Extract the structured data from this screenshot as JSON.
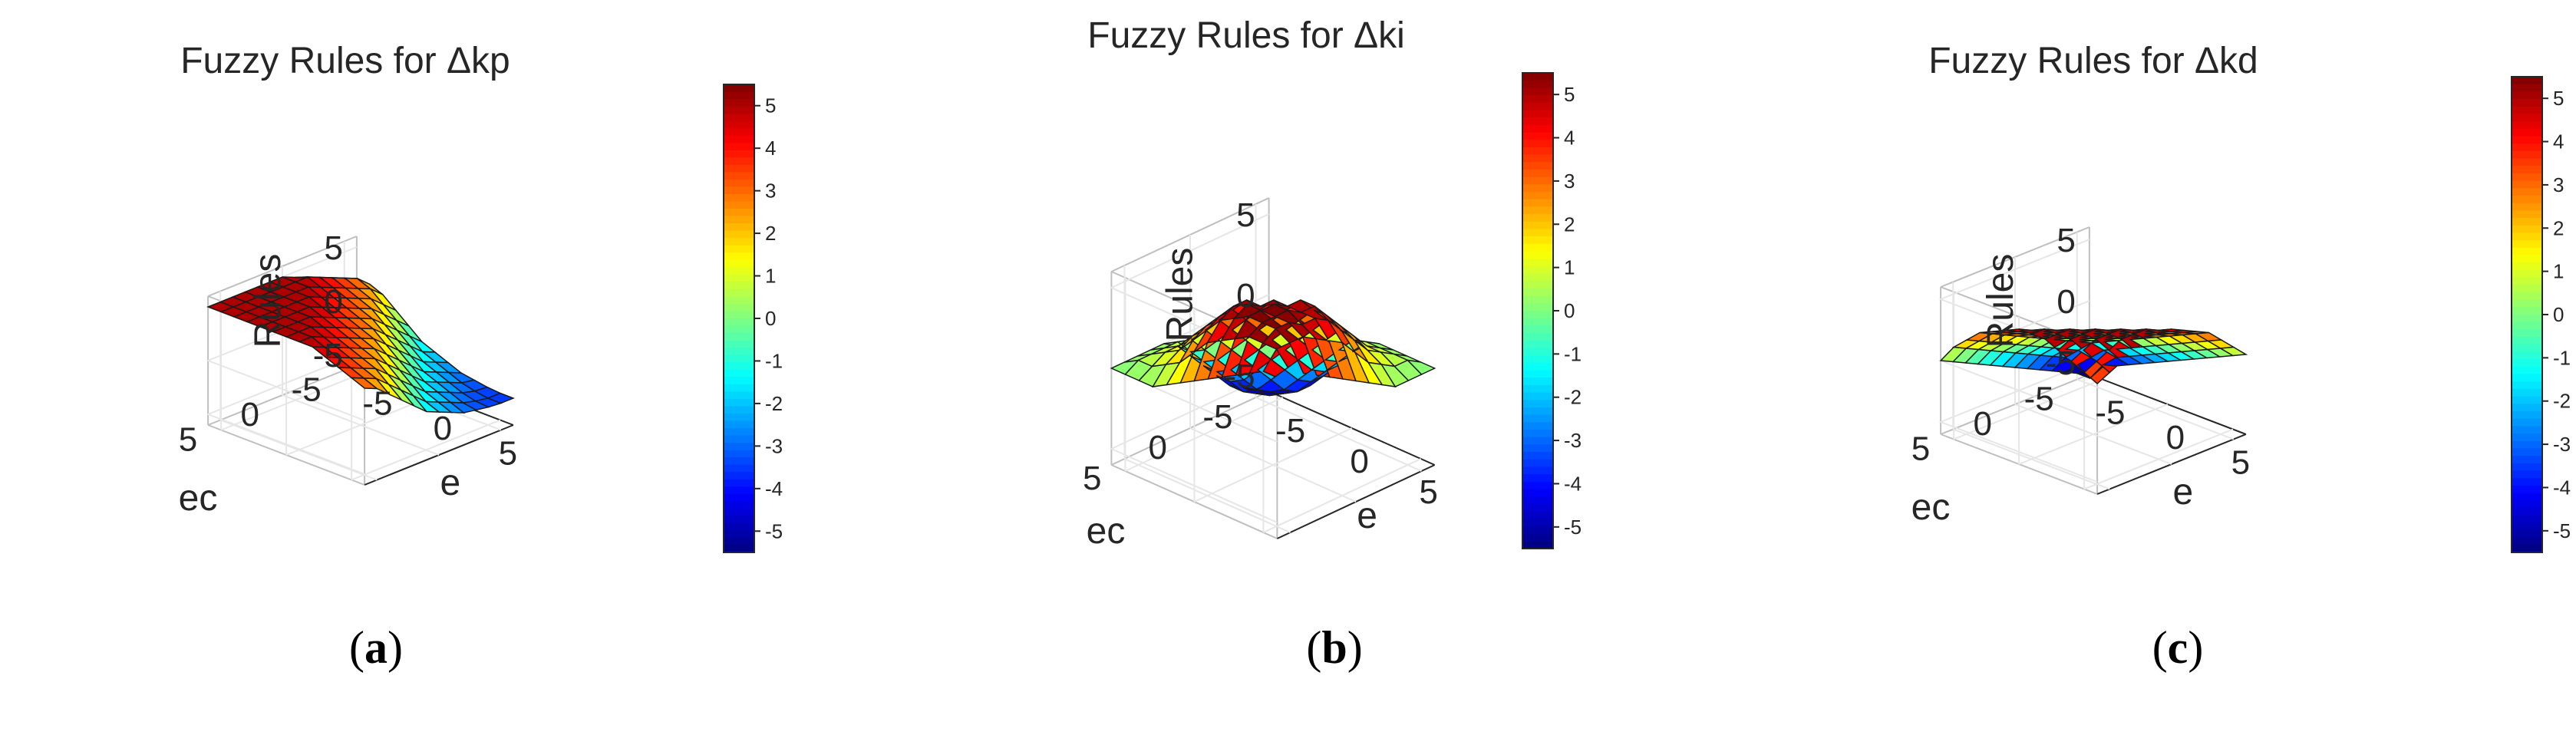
{
  "chart_data": [
    {
      "type": "surface",
      "title": "Fuzzy Rules for Δkp",
      "xlabel": "e",
      "ylabel": "ec",
      "zlabel": "Rules",
      "xlim": [
        -6,
        6
      ],
      "ylim": [
        -6,
        6
      ],
      "zlim": [
        -6,
        6
      ],
      "x_ticks": [
        -5,
        0,
        5
      ],
      "y_ticks": [
        -5,
        0,
        5
      ],
      "z_ticks": [
        -5,
        0,
        5
      ],
      "x": [
        -6,
        -5,
        -4,
        -3,
        -2,
        -1,
        0,
        1,
        2,
        3,
        4,
        5,
        6
      ],
      "y": [
        -6,
        -5,
        -4,
        -3,
        -2,
        -1,
        0,
        1,
        2,
        3,
        4,
        5,
        6
      ],
      "colorbar": {
        "ticks": [
          5,
          4,
          3,
          2,
          1,
          0,
          -1,
          -2,
          -3,
          -4,
          -5
        ],
        "colormap": "jet",
        "range": [
          -5.5,
          5.5
        ]
      },
      "caption": "(a)",
      "caption_letter": "a",
      "z": [
        [
          2.0,
          2.0,
          1.5,
          0.5,
          -0.5,
          -1.5,
          -2.0,
          -2.5,
          -3.0,
          -3.2,
          -3.4,
          -3.5,
          -3.5
        ],
        [
          2.5,
          3.0,
          2.5,
          1.5,
          0.5,
          -0.5,
          -1.5,
          -2.0,
          -2.5,
          -3.0,
          -3.3,
          -3.5,
          -3.5
        ],
        [
          3.0,
          3.5,
          3.0,
          2.5,
          1.5,
          0.5,
          -0.5,
          -1.5,
          -2.0,
          -2.5,
          -3.0,
          -3.3,
          -3.4
        ],
        [
          3.5,
          4.0,
          3.5,
          3.0,
          2.5,
          1.5,
          0.5,
          -0.5,
          -1.5,
          -2.0,
          -2.5,
          -3.0,
          -3.2
        ],
        [
          4.0,
          4.5,
          4.0,
          3.5,
          3.0,
          2.5,
          1.5,
          0.5,
          -0.5,
          -1.5,
          -2.0,
          -2.5,
          -3.0
        ],
        [
          4.5,
          5.0,
          4.5,
          4.0,
          3.5,
          3.0,
          2.5,
          1.5,
          0.5,
          -0.5,
          -1.5,
          -2.0,
          -2.5
        ],
        [
          5.0,
          5.0,
          5.0,
          4.5,
          4.0,
          3.5,
          3.0,
          2.5,
          1.5,
          0.5,
          -0.5,
          -1.5,
          -2.0
        ],
        [
          5.0,
          5.0,
          5.0,
          5.0,
          4.5,
          4.0,
          3.5,
          3.0,
          2.5,
          1.5,
          0.5,
          -0.5,
          -1.5
        ],
        [
          5.0,
          5.0,
          5.0,
          5.0,
          5.0,
          4.5,
          4.0,
          3.5,
          3.0,
          2.5,
          1.5,
          0.5,
          -0.5
        ],
        [
          5.0,
          5.0,
          5.0,
          5.0,
          5.0,
          5.0,
          4.5,
          4.0,
          3.5,
          3.0,
          2.5,
          1.5,
          0.5
        ],
        [
          5.0,
          5.0,
          5.0,
          5.0,
          5.0,
          5.0,
          5.0,
          4.5,
          4.0,
          3.5,
          3.0,
          2.5,
          1.5
        ],
        [
          5.0,
          5.0,
          5.0,
          5.0,
          5.0,
          5.0,
          5.0,
          5.0,
          4.5,
          4.0,
          3.5,
          3.0,
          2.5
        ],
        [
          5.0,
          5.0,
          5.0,
          5.0,
          5.0,
          5.0,
          5.0,
          5.0,
          5.0,
          4.5,
          4.0,
          3.5,
          3.0
        ]
      ]
    },
    {
      "type": "surface",
      "title": "Fuzzy Rules for Δki",
      "xlabel": "e",
      "ylabel": "ec",
      "zlabel": "Rules",
      "xlim": [
        -6,
        6
      ],
      "ylim": [
        -6,
        6
      ],
      "zlim": [
        -6,
        6
      ],
      "x_ticks": [
        -5,
        0,
        5
      ],
      "y_ticks": [
        -5,
        0,
        5
      ],
      "z_ticks": [
        -5,
        0,
        5
      ],
      "x": [
        -6,
        -5,
        -4,
        -3,
        -2,
        -1,
        0,
        1,
        2,
        3,
        4,
        5,
        6
      ],
      "y": [
        -6,
        -5,
        -4,
        -3,
        -2,
        -1,
        0,
        1,
        2,
        3,
        4,
        5,
        6
      ],
      "colorbar": {
        "ticks": [
          5,
          4,
          3,
          2,
          1,
          0,
          -1,
          -2,
          -3,
          -4,
          -5
        ],
        "colormap": "jet",
        "range": [
          -5.5,
          5.5
        ]
      },
      "caption": "(b)",
      "caption_letter": "b",
      "z": [
        [
          -5.5,
          -5.5,
          -5.0,
          -4.5,
          -3.5,
          -2.5,
          -1.5,
          -0.5,
          0.0,
          0.0,
          0.0,
          0.0,
          0.0
        ],
        [
          -5.5,
          -5.5,
          -5.0,
          -4.5,
          -3.5,
          -2.5,
          -1.5,
          -0.5,
          0.5,
          0.5,
          0.5,
          0.5,
          0.0
        ],
        [
          -5.0,
          -5.0,
          -4.5,
          -4.0,
          -3.0,
          -2.0,
          -1.0,
          0.0,
          1.0,
          1.0,
          1.0,
          0.5,
          0.0
        ],
        [
          -4.5,
          -4.5,
          -4.0,
          -3.0,
          -2.0,
          -1.0,
          0.0,
          1.0,
          2.0,
          2.0,
          1.5,
          1.0,
          0.0
        ],
        [
          -3.5,
          -3.5,
          -3.0,
          -2.0,
          -1.0,
          0.0,
          1.0,
          2.0,
          3.0,
          3.0,
          2.5,
          1.5,
          0.5
        ],
        [
          -2.5,
          -2.5,
          -2.0,
          -1.0,
          0.0,
          1.0,
          2.0,
          3.0,
          4.0,
          4.0,
          3.5,
          2.5,
          1.0
        ],
        [
          -1.5,
          -1.5,
          -1.0,
          0.0,
          1.0,
          2.0,
          3.0,
          4.0,
          5.0,
          5.0,
          4.5,
          3.5,
          1.5
        ],
        [
          -0.5,
          -0.5,
          0.0,
          1.0,
          2.0,
          3.0,
          4.0,
          5.0,
          5.0,
          5.0,
          5.0,
          4.0,
          2.0
        ],
        [
          0.0,
          0.5,
          1.0,
          2.0,
          3.0,
          4.0,
          5.0,
          5.0,
          5.5,
          5.5,
          5.0,
          4.5,
          2.5
        ],
        [
          0.0,
          0.5,
          1.0,
          2.0,
          3.0,
          4.0,
          5.0,
          5.5,
          5.5,
          5.5,
          5.5,
          5.0,
          3.0
        ],
        [
          0.0,
          0.5,
          1.0,
          1.5,
          2.5,
          3.5,
          4.5,
          5.0,
          5.5,
          5.5,
          5.5,
          5.0,
          3.5
        ],
        [
          0.0,
          0.5,
          0.5,
          1.0,
          1.5,
          2.5,
          3.5,
          4.0,
          4.5,
          5.0,
          5.0,
          5.0,
          4.0
        ],
        [
          0.0,
          0.0,
          0.0,
          0.0,
          0.5,
          1.0,
          1.5,
          2.0,
          2.5,
          3.0,
          3.5,
          4.0,
          4.0
        ]
      ]
    },
    {
      "type": "surface",
      "title": "Fuzzy Rules for Δkd",
      "xlabel": "e",
      "ylabel": "ec",
      "zlabel": "Rules",
      "xlim": [
        -6,
        6
      ],
      "ylim": [
        -6,
        6
      ],
      "zlim": [
        -6,
        6
      ],
      "x_ticks": [
        -5,
        0,
        5
      ],
      "y_ticks": [
        -5,
        0,
        5
      ],
      "z_ticks": [
        -5,
        0,
        5
      ],
      "x": [
        -6,
        -5,
        -4,
        -3,
        -2,
        -1,
        0,
        1,
        2,
        3,
        4,
        5,
        6
      ],
      "y": [
        -6,
        -5,
        -4,
        -3,
        -2,
        -1,
        0,
        1,
        2,
        3,
        4,
        5,
        6
      ],
      "colorbar": {
        "ticks": [
          5,
          4,
          3,
          2,
          1,
          0,
          -1,
          -2,
          -3,
          -4,
          -5
        ],
        "colormap": "jet",
        "range": [
          -5.5,
          5.5
        ]
      },
      "caption": "(c)",
      "caption_letter": "c",
      "z": [
        [
          -5.5,
          -5.0,
          -4.5,
          -4.0,
          -3.5,
          -3.0,
          -2.5,
          -2.0,
          -1.5,
          -1.0,
          -0.5,
          0.0,
          0.5
        ],
        [
          -5.5,
          -5.5,
          -4.0,
          -3.0,
          -2.5,
          -2.0,
          -1.5,
          -1.0,
          -0.5,
          0.0,
          0.5,
          1.0,
          1.5
        ],
        [
          -5.0,
          -4.0,
          -3.0,
          -2.0,
          -1.5,
          -1.0,
          -0.5,
          0.0,
          0.5,
          1.0,
          1.5,
          2.0,
          2.5
        ],
        [
          -4.5,
          -3.0,
          -2.0,
          -1.0,
          -0.5,
          0.0,
          0.5,
          1.0,
          1.5,
          2.0,
          2.5,
          3.0,
          3.5
        ],
        [
          -4.0,
          -2.5,
          -1.5,
          -0.5,
          0.0,
          0.5,
          1.0,
          1.5,
          2.0,
          2.5,
          3.0,
          3.5,
          4.0
        ],
        [
          -3.5,
          -2.0,
          -1.0,
          0.0,
          0.5,
          1.0,
          1.5,
          2.0,
          2.5,
          3.0,
          3.5,
          4.0,
          4.5
        ],
        [
          -3.0,
          -1.5,
          -0.5,
          0.5,
          1.0,
          1.5,
          2.0,
          2.5,
          3.0,
          3.5,
          4.0,
          4.5,
          5.0
        ],
        [
          -2.5,
          -1.0,
          0.0,
          1.0,
          1.5,
          2.0,
          2.5,
          3.0,
          3.5,
          4.0,
          4.5,
          5.0,
          5.0
        ],
        [
          -2.0,
          -0.5,
          0.5,
          1.5,
          2.0,
          2.5,
          3.0,
          3.5,
          4.0,
          4.5,
          5.0,
          5.0,
          5.0
        ],
        [
          -1.5,
          0.0,
          1.0,
          2.0,
          2.5,
          3.0,
          3.5,
          4.0,
          4.5,
          5.0,
          5.0,
          5.0,
          4.5
        ],
        [
          -1.0,
          0.5,
          1.5,
          2.5,
          3.0,
          3.5,
          4.0,
          4.5,
          5.0,
          5.0,
          5.0,
          4.5,
          4.0
        ],
        [
          -0.5,
          1.0,
          2.0,
          3.0,
          3.5,
          4.0,
          4.5,
          5.0,
          5.0,
          5.0,
          4.5,
          4.0,
          3.5
        ],
        [
          0.0,
          1.5,
          2.5,
          3.5,
          4.0,
          4.5,
          5.0,
          5.0,
          5.0,
          4.5,
          4.0,
          3.5,
          3.0
        ]
      ]
    }
  ]
}
